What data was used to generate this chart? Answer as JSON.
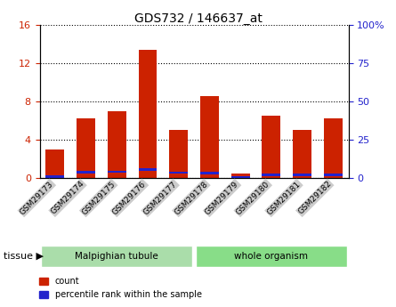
{
  "title": "GDS732 / 146637_at",
  "categories": [
    "GSM29173",
    "GSM29174",
    "GSM29175",
    "GSM29176",
    "GSM29177",
    "GSM29178",
    "GSM29179",
    "GSM29180",
    "GSM29181",
    "GSM29182"
  ],
  "count_values": [
    3.0,
    6.2,
    7.0,
    13.4,
    5.0,
    8.5,
    0.5,
    6.5,
    5.0,
    6.2
  ],
  "percentile_values": [
    1.0,
    3.7,
    4.1,
    5.5,
    3.5,
    3.4,
    0.3,
    2.2,
    2.0,
    2.0
  ],
  "bar_color": "#cc2200",
  "blue_color": "#2222cc",
  "left_ylim": [
    0,
    16
  ],
  "right_ylim": [
    0,
    100
  ],
  "left_yticks": [
    0,
    4,
    8,
    12,
    16
  ],
  "left_yticklabels": [
    "0",
    "4",
    "8",
    "12",
    "16"
  ],
  "right_yticks": [
    0,
    25,
    50,
    75,
    100
  ],
  "right_yticklabels": [
    "0",
    "25",
    "50",
    "75",
    "100%"
  ],
  "tissue_groups": [
    {
      "label": "Malpighian tubule",
      "indices": [
        0,
        1,
        2,
        3,
        4
      ],
      "color": "#aaddaa"
    },
    {
      "label": "whole organism",
      "indices": [
        5,
        6,
        7,
        8,
        9
      ],
      "color": "#88dd88"
    }
  ],
  "tissue_label": "tissue",
  "legend_count": "count",
  "legend_percentile": "percentile rank within the sample",
  "grid_color": "#000000",
  "bar_width": 0.6,
  "tick_label_bg": "#cccccc"
}
